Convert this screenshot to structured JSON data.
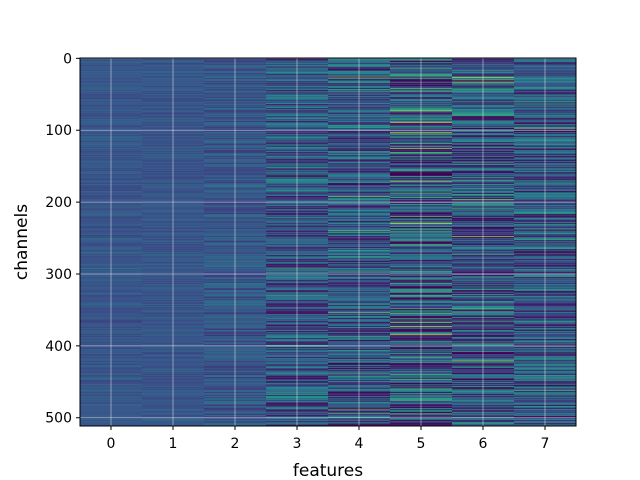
{
  "chart_data": {
    "type": "heatmap",
    "xlabel": "features",
    "ylabel": "channels",
    "x_categories": [
      "0",
      "1",
      "2",
      "3",
      "4",
      "5",
      "6",
      "7"
    ],
    "y_ticks": [
      0,
      100,
      200,
      300,
      400,
      500
    ],
    "y_range": [
      0,
      511
    ],
    "y_inverted": true,
    "rows": 512,
    "columns": 8,
    "colormap": "viridis",
    "grid": true,
    "column_contrast": [
      0.12,
      0.12,
      0.2,
      0.45,
      0.5,
      0.65,
      0.6,
      0.5
    ],
    "highlights": [
      {
        "feature": 5,
        "channel": 89,
        "level": 0.95
      },
      {
        "feature": 5,
        "channel": 125,
        "level": 0.92
      },
      {
        "feature": 5,
        "channel": 230,
        "level": 0.9
      },
      {
        "feature": 6,
        "channel": 33,
        "level": 0.85
      },
      {
        "feature": 6,
        "channel": 420,
        "level": 0.85
      },
      {
        "feature": 7,
        "channel": 97,
        "level": 0.8
      },
      {
        "feature": 4,
        "channel": 130,
        "level": 0.6
      },
      {
        "feature": 3,
        "channel": 400,
        "level": 0.7
      }
    ]
  },
  "colors": {
    "background": "#3b528b",
    "low": "#440154",
    "mid": "#21918c",
    "high": "#fde725",
    "grid": "#ffffff"
  }
}
